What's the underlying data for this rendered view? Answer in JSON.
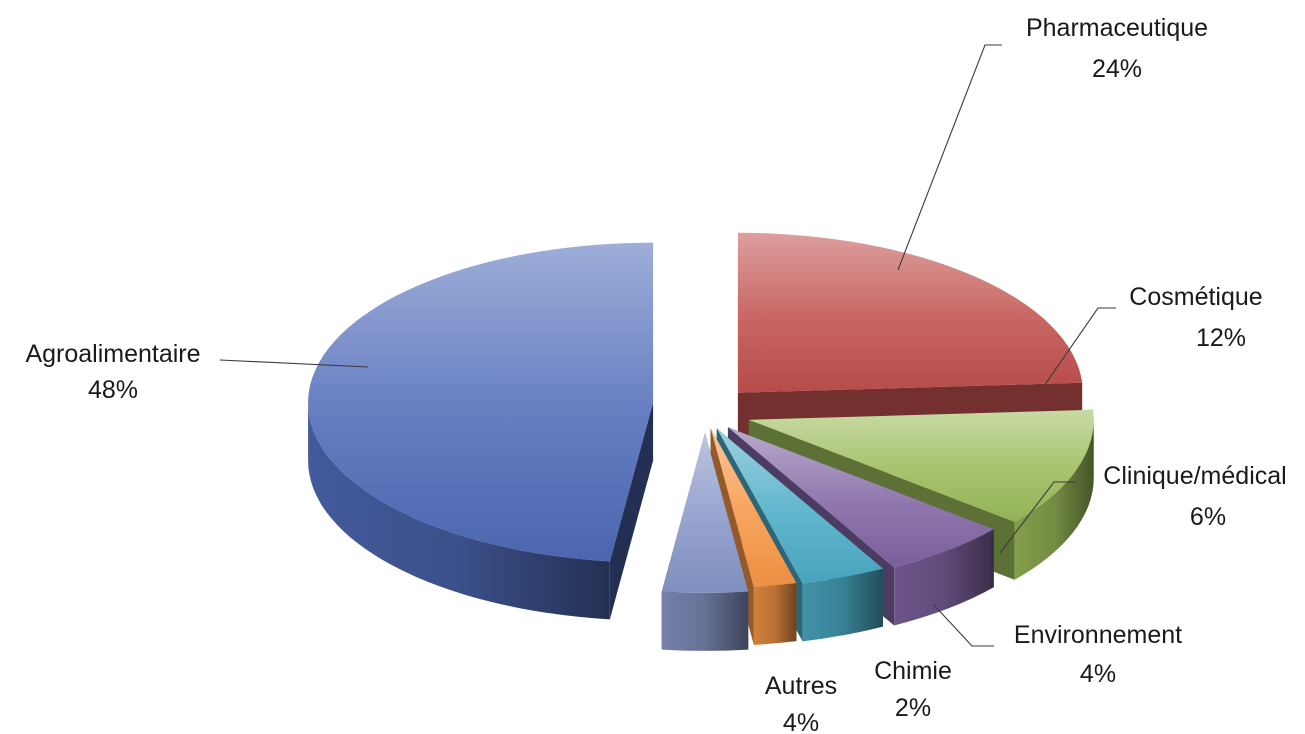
{
  "chart_data": {
    "type": "pie",
    "style": "3d-exploded",
    "title": "",
    "unit": "%",
    "slices": [
      {
        "label": "Pharmaceutique",
        "value": 24,
        "value_label": "24%",
        "color": "#c0504d"
      },
      {
        "label": "Cosmétique",
        "value": 12,
        "value_label": "12%",
        "color": "#9bbb59"
      },
      {
        "label": "Clinique/médical",
        "value": 6,
        "value_label": "6%",
        "color": "#8064a2"
      },
      {
        "label": "Environnement",
        "value": 4,
        "value_label": "4%",
        "color": "#4bacc6"
      },
      {
        "label": "Chimie",
        "value": 2,
        "value_label": "2%",
        "color": "#f79646"
      },
      {
        "label": "Autres",
        "value": 4,
        "value_label": "4%",
        "color": "#8896c8"
      },
      {
        "label": "Agroalimentaire",
        "value": 48,
        "value_label": "48%",
        "color": "#4f6bb8"
      }
    ]
  }
}
